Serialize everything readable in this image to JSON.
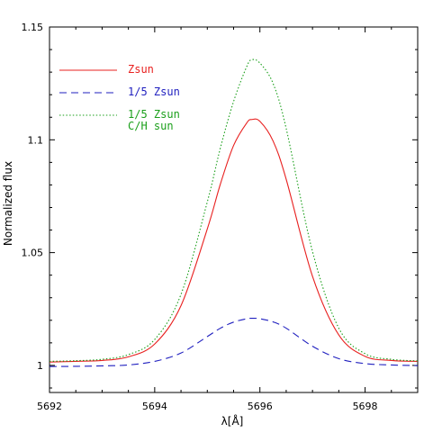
{
  "chart_data": {
    "type": "line",
    "title": "",
    "xlabel": "λ[Å]",
    "ylabel": "Normalized flux",
    "xlim": [
      5692,
      5699
    ],
    "ylim": [
      0.988,
      1.15
    ],
    "x_ticks": [
      5692,
      5694,
      5696,
      5698
    ],
    "x_tick_labels": [
      "5692",
      "5694",
      "5696",
      "5698"
    ],
    "y_ticks": [
      1,
      1.05,
      1.1,
      1.15
    ],
    "y_tick_labels": [
      "1",
      "1.05",
      "1.1",
      "1.15"
    ],
    "grid": false,
    "legend_position": "top-left",
    "x": [
      5692.0,
      5692.5,
      5693.0,
      5693.5,
      5694.0,
      5694.5,
      5695.0,
      5695.25,
      5695.5,
      5695.75,
      5695.85,
      5696.0,
      5696.25,
      5696.5,
      5697.0,
      5697.5,
      5698.0,
      5698.5,
      5699.0
    ],
    "series": [
      {
        "name": "Zsun",
        "color": "#e8201f",
        "dash": "solid",
        "values": [
          1.0015,
          1.0018,
          1.0022,
          1.0038,
          1.0095,
          1.0265,
          1.0605,
          1.0805,
          1.0975,
          1.1075,
          1.109,
          1.1082,
          1.0995,
          1.0825,
          1.0395,
          1.0135,
          1.004,
          1.0022,
          1.0018
        ]
      },
      {
        "name": "1/5 Zsun",
        "legend_lines": [
          "1/5 Zsun"
        ],
        "color": "#1f1fbf",
        "dash": "dashed",
        "values": [
          0.9995,
          0.9996,
          0.9998,
          1.0002,
          1.0018,
          1.0055,
          1.0128,
          1.0165,
          1.0192,
          1.0207,
          1.0209,
          1.0207,
          1.0193,
          1.0165,
          1.0085,
          1.003,
          1.0008,
          1.0002,
          0.9999
        ]
      },
      {
        "name": "1/5 Zsun C/H sun",
        "legend_lines": [
          "1/5 Zsun",
          "C/H sun"
        ],
        "color": "#1a9f1a",
        "dash": "dotted",
        "values": [
          1.0018,
          1.0021,
          1.0027,
          1.0048,
          1.0115,
          1.0315,
          1.0725,
          1.0965,
          1.117,
          1.1325,
          1.1355,
          1.134,
          1.125,
          1.105,
          1.0505,
          1.0165,
          1.0052,
          1.0027,
          1.002
        ]
      }
    ]
  }
}
